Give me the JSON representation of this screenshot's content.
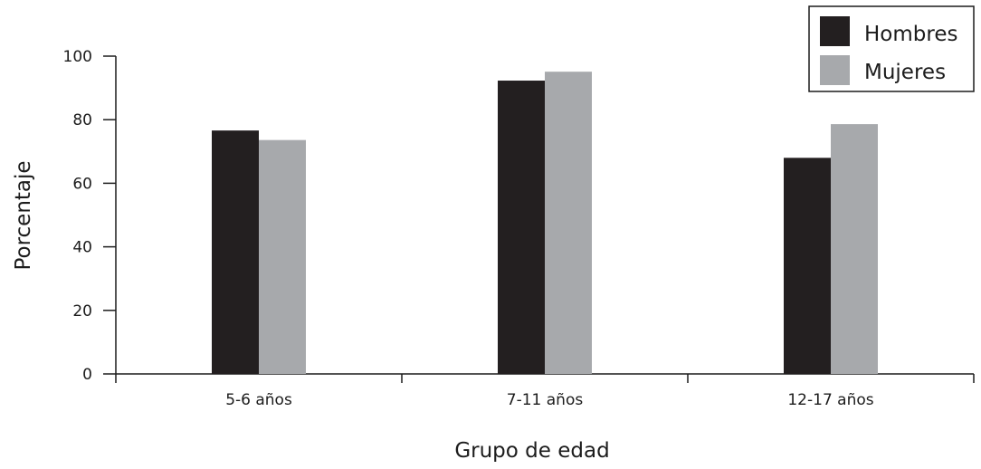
{
  "chart_data": {
    "type": "bar",
    "title": "",
    "xlabel": "Grupo de edad",
    "ylabel": "Porcentaje",
    "categories": [
      "5-6 años",
      "7-11 años",
      "12-17 años"
    ],
    "series": [
      {
        "name": "Hombres",
        "values": [
          76.6,
          92.3,
          68.0
        ],
        "color": "#231f20"
      },
      {
        "name": "Mujeres",
        "values": [
          73.6,
          95.1,
          78.6
        ],
        "color": "#a7a9ac"
      }
    ],
    "ylim": [
      0,
      100
    ],
    "yticks": [
      "0",
      "20",
      "40",
      "60",
      "80",
      "100"
    ],
    "grid": false,
    "legend_position": "top-right"
  }
}
